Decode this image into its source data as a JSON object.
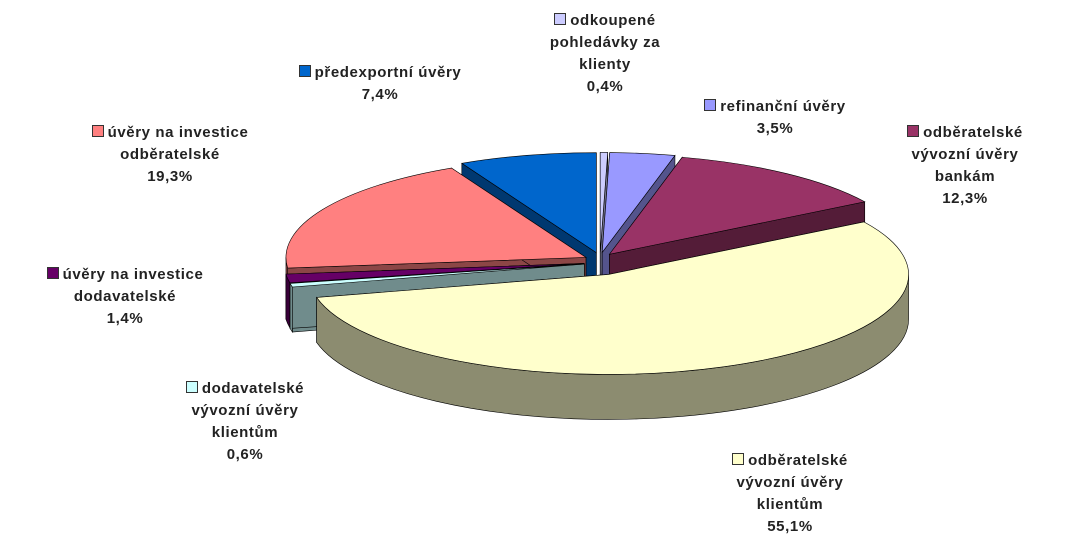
{
  "chart_data": {
    "type": "pie3d",
    "categories": [
      "odkoupené pohledávky za klienty",
      "refinanční úvěry",
      "odběratelské vývozní úvěry bankám",
      "odběratelské vývozní úvěry klientům",
      "dodavatelské vývozní úvěry klientům",
      "úvěry na investice dodavatelské",
      "úvěry na investice odběratelské",
      "předexportní úvěry"
    ],
    "values": [
      0.4,
      3.5,
      12.3,
      55.1,
      0.6,
      1.4,
      19.3,
      7.4
    ],
    "value_labels": [
      "0,4%",
      "3,5%",
      "12,3%",
      "55,1%",
      "0,6%",
      "1,4%",
      "19,3%",
      "7,4%"
    ],
    "colors": [
      "#ccccff",
      "#9999ff",
      "#993366",
      "#ffffcc",
      "#ccffff",
      "#660066",
      "#ff8080",
      "#0066cc"
    ]
  }
}
